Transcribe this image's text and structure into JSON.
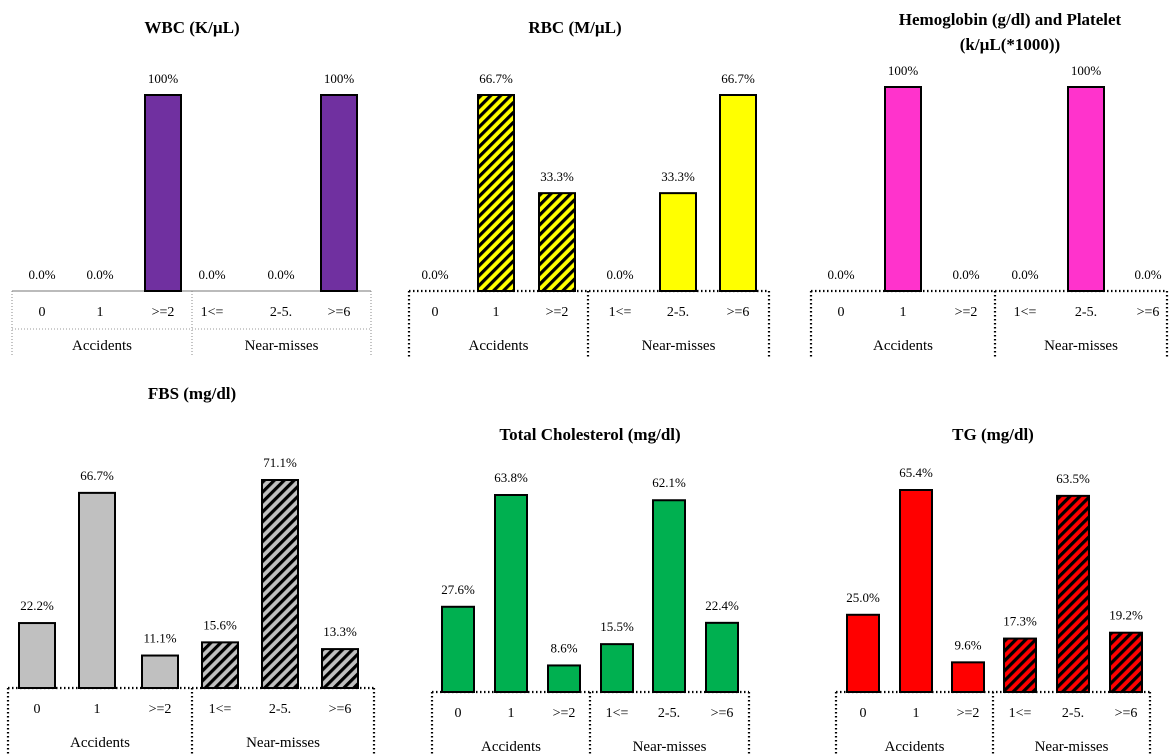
{
  "figure": {
    "category_labels": [
      "0",
      "1",
      ">=2",
      "1<=",
      "2-5.",
      ">=6"
    ],
    "group_labels": [
      "Accidents",
      "Near-misses"
    ]
  },
  "chart_data": [
    {
      "type": "bar",
      "title_lines": [
        "WBC (K/µL)"
      ],
      "categories": [
        "0",
        "1",
        ">=2",
        "1<=",
        "2-5.",
        ">=6"
      ],
      "groups": [
        "Accidents",
        "Near-misses"
      ],
      "values": [
        0.0,
        0.0,
        100,
        0.0,
        0.0,
        100
      ],
      "labels": [
        "0.0%",
        "0.0%",
        "100%",
        "0.0%",
        "0.0%",
        "100%"
      ],
      "ylim": [
        0,
        100
      ],
      "colors": [
        "#7030a0",
        "#7030a0"
      ],
      "hatched": [
        false,
        false
      ]
    },
    {
      "type": "bar",
      "title_lines": [
        "RBC (M/µL)"
      ],
      "categories": [
        "0",
        "1",
        ">=2",
        "1<=",
        "2-5.",
        ">=6"
      ],
      "groups": [
        "Accidents",
        "Near-misses"
      ],
      "values": [
        0.0,
        66.7,
        33.3,
        0.0,
        33.3,
        66.7
      ],
      "labels": [
        "0.0%",
        "66.7%",
        "33.3%",
        "0.0%",
        "33.3%",
        "66.7%"
      ],
      "ylim": [
        0,
        66.7
      ],
      "colors": [
        "#ffff00",
        "#ffff00"
      ],
      "hatched": [
        true,
        false
      ]
    },
    {
      "type": "bar",
      "title_lines": [
        "Hemoglobin (g/dl) and Platelet",
        "(k/µL(*1000))"
      ],
      "categories": [
        "0",
        "1",
        ">=2",
        "1<=",
        "2-5.",
        ">=6"
      ],
      "groups": [
        "Accidents",
        "Near-misses"
      ],
      "values": [
        0.0,
        100,
        0.0,
        0.0,
        100,
        0.0
      ],
      "labels": [
        "0.0%",
        "100%",
        "0.0%",
        "0.0%",
        "100%",
        "0.0%"
      ],
      "ylim": [
        0,
        100
      ],
      "colors": [
        "#ff33cc",
        "#ff33cc"
      ],
      "hatched": [
        false,
        false
      ]
    },
    {
      "type": "bar",
      "title_lines": [
        "FBS (mg/dl)"
      ],
      "categories": [
        "0",
        "1",
        ">=2",
        "1<=",
        "2-5.",
        ">=6"
      ],
      "groups": [
        "Accidents",
        "Near-misses"
      ],
      "values": [
        22.2,
        66.7,
        11.1,
        15.6,
        71.1,
        13.3
      ],
      "labels": [
        "22.2%",
        "66.7%",
        "11.1%",
        "15.6%",
        "71.1%",
        "13.3%"
      ],
      "ylim": [
        0,
        71.1
      ],
      "colors": [
        "#c0c0c0",
        "#bfbfbf"
      ],
      "hatched": [
        false,
        true
      ]
    },
    {
      "type": "bar",
      "title_lines": [
        "Total Cholesterol (mg/dl)"
      ],
      "categories": [
        "0",
        "1",
        ">=2",
        "1<=",
        "2-5.",
        ">=6"
      ],
      "groups": [
        "Accidents",
        "Near-misses"
      ],
      "values": [
        27.6,
        63.8,
        8.6,
        15.5,
        62.1,
        22.4
      ],
      "labels": [
        "27.6%",
        "63.8%",
        "8.6%",
        "15.5%",
        "62.1%",
        "22.4%"
      ],
      "ylim": [
        0,
        63.8
      ],
      "colors": [
        "#00b050",
        "#00b050"
      ],
      "hatched": [
        false,
        false
      ]
    },
    {
      "type": "bar",
      "title_lines": [
        "TG (mg/dl)"
      ],
      "categories": [
        "0",
        "1",
        ">=2",
        "1<=",
        "2-5.",
        ">=6"
      ],
      "groups": [
        "Accidents",
        "Near-misses"
      ],
      "values": [
        25.0,
        65.4,
        9.6,
        17.3,
        63.5,
        19.2
      ],
      "labels": [
        "25.0%",
        "65.4%",
        "9.6%",
        "17.3%",
        "63.5%",
        "19.2%"
      ],
      "ylim": [
        0,
        65.4
      ],
      "colors": [
        "#ff0000",
        "#ff0000"
      ],
      "hatched": [
        false,
        true
      ]
    }
  ]
}
